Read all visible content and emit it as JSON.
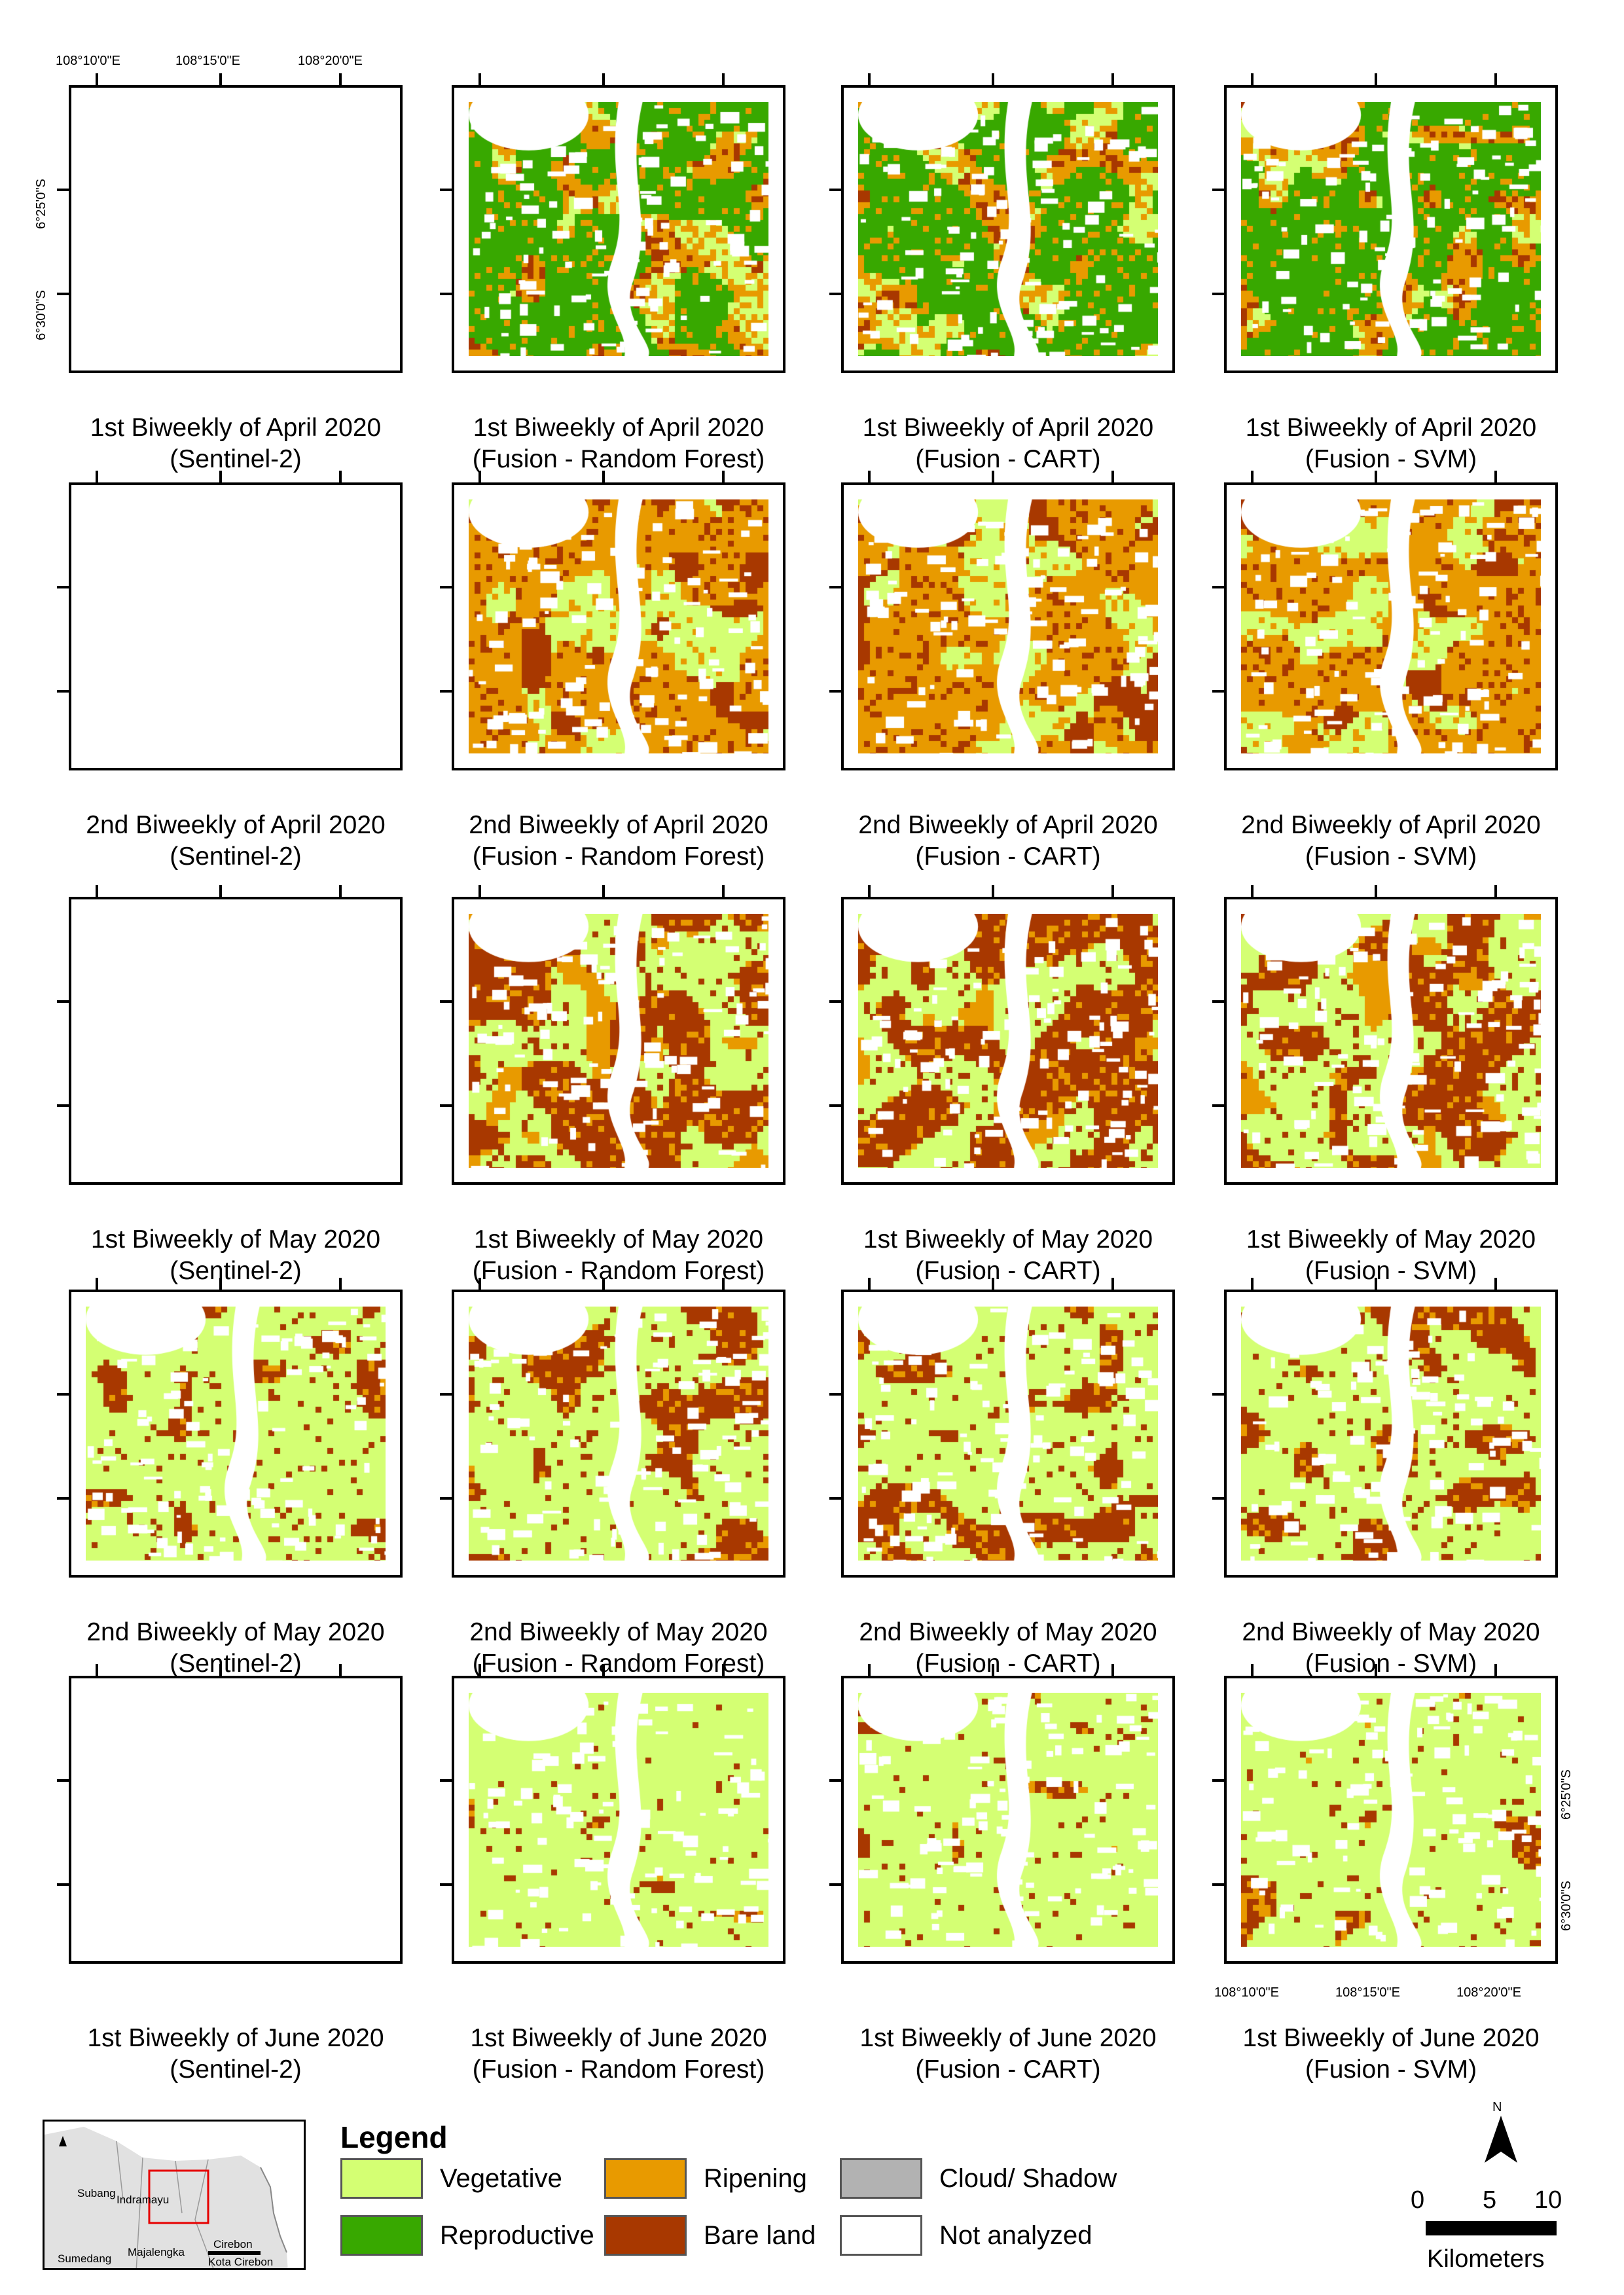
{
  "map_title": "",
  "coordinates": {
    "longitudes": [
      "108°10'0\"E",
      "108°15'0\"E",
      "108°20'0\"E"
    ],
    "latitudes": [
      "6°25'0\"S",
      "6°30'0\"S"
    ]
  },
  "columns": [
    "Sentinel-2",
    "Fusion - Random Forest",
    "Fusion - CART",
    "Fusion - SVM"
  ],
  "rows": [
    {
      "period": "1st Biweekly of April 2020",
      "sentinel_available": false,
      "dominant": "reproductive"
    },
    {
      "period": "2nd Biweekly of April 2020",
      "sentinel_available": false,
      "dominant": "ripening"
    },
    {
      "period": "1st Biweekly of May 2020",
      "sentinel_available": false,
      "dominant": "bare"
    },
    {
      "period": "2nd Biweekly of May 2020",
      "sentinel_available": true,
      "dominant": "vegetative_bare"
    },
    {
      "period": "1st Biweekly of June 2020",
      "sentinel_available": false,
      "dominant": "vegetative"
    }
  ],
  "captions": [
    [
      "1st Biweekly of April 2020",
      "(Sentinel-2)",
      "1st Biweekly of April 2020",
      "(Fusion - Random Forest)",
      "1st Biweekly of April 2020",
      "(Fusion - CART)",
      "1st Biweekly of April 2020",
      "(Fusion - SVM)"
    ],
    [
      "2nd Biweekly of April 2020",
      "(Sentinel-2)",
      "2nd Biweekly of April 2020",
      "(Fusion - Random Forest)",
      "2nd Biweekly of April 2020",
      "(Fusion - CART)",
      "2nd Biweekly of April 2020",
      "(Fusion - SVM)"
    ],
    [
      "1st Biweekly of May 2020",
      "(Sentinel-2)",
      "1st Biweekly of May 2020",
      "(Fusion - Random Forest)",
      "1st Biweekly of May 2020",
      "(Fusion - CART)",
      "1st Biweekly of May 2020",
      "(Fusion - SVM)"
    ],
    [
      "2nd Biweekly of May 2020",
      "(Sentinel-2)",
      "2nd Biweekly of May 2020",
      "(Fusion - Random Forest)",
      "2nd Biweekly of May 2020",
      "(Fusion - CART)",
      "2nd Biweekly of May 2020",
      "(Fusion - SVM)"
    ],
    [
      "1st Biweekly of June 2020",
      "(Sentinel-2)",
      "1st Biweekly of June 2020",
      "(Fusion - Random Forest)",
      "1st Biweekly of June 2020",
      "(Fusion - CART)",
      "1st Biweekly of June 2020",
      "(Fusion - SVM)"
    ]
  ],
  "legend": {
    "title": "Legend",
    "items": [
      {
        "label": "Vegetative",
        "color": "#d4ff73"
      },
      {
        "label": "Reproductive",
        "color": "#38a800"
      },
      {
        "label": "Ripening",
        "color": "#e89a00"
      },
      {
        "label": "Bare land",
        "color": "#a83800"
      },
      {
        "label": "Cloud/ Shadow",
        "color": "#b2b2b2"
      },
      {
        "label": "Not analyzed",
        "color": "#ffffff"
      }
    ]
  },
  "inset_map": {
    "labels": [
      "Subang",
      "Indramayu",
      "Sumedang",
      "Majalengka",
      "Cirebon",
      "Kota Cirebon"
    ],
    "land_color": "#e1e1e1",
    "sea_color": "#ffffff",
    "highlight_color": "#e60000"
  },
  "scale": {
    "labels": [
      "0",
      "5",
      "10"
    ],
    "unit": "Kilometers"
  },
  "north_arrow": {
    "label": "N",
    "icon": "north-arrow-icon"
  }
}
